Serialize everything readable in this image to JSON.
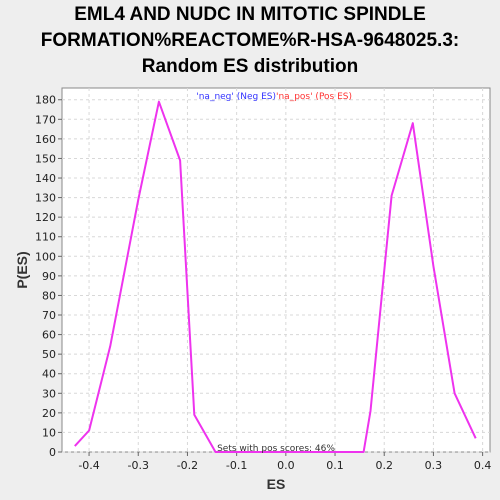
{
  "chart_data": {
    "type": "line",
    "title_lines": [
      "EML4 AND NUDC IN MITOTIC SPINDLE",
      "FORMATION%REACTOME%R-HSA-9648025.3:",
      "Random ES distribution"
    ],
    "xlabel": "ES",
    "ylabel": "P(ES)",
    "xlim": [
      -0.455,
      0.415
    ],
    "ylim": [
      0,
      186
    ],
    "x_ticks": [
      -0.4,
      -0.3,
      -0.2,
      -0.1,
      0.0,
      0.1,
      0.2,
      0.3,
      0.4
    ],
    "x_tick_labels": [
      "-0.4",
      "-0.3",
      "-0.2",
      "-0.1",
      "0.0",
      "0.1",
      "0.2",
      "0.3",
      "0.4"
    ],
    "y_ticks": [
      0,
      10,
      20,
      30,
      40,
      50,
      60,
      70,
      80,
      90,
      100,
      110,
      120,
      130,
      140,
      150,
      160,
      170,
      180
    ],
    "y_tick_labels": [
      "0",
      "10",
      "20",
      "30",
      "40",
      "50",
      "60",
      "70",
      "80",
      "90",
      "100",
      "110",
      "120",
      "130",
      "140",
      "150",
      "160",
      "170",
      "180"
    ],
    "grid": true,
    "legend": {
      "position": "top-center",
      "entries": [
        {
          "label": "'na_neg' (Neg ES)",
          "color": "#3333ff"
        },
        {
          "label": "'na_pos' (Pos ES)",
          "color": "#ff3333"
        }
      ]
    },
    "annotation": "Sets with pos scores: 46%",
    "series": [
      {
        "color": "#ee33ee",
        "points": [
          [
            -0.429,
            3
          ],
          [
            -0.4,
            11
          ],
          [
            -0.357,
            54
          ],
          [
            -0.3,
            129
          ],
          [
            -0.258,
            179
          ],
          [
            -0.215,
            149
          ],
          [
            -0.186,
            19
          ],
          [
            -0.143,
            0
          ],
          [
            -0.1,
            0
          ],
          [
            -0.057,
            0
          ],
          [
            -0.014,
            0
          ],
          [
            0.029,
            0
          ],
          [
            0.072,
            0
          ],
          [
            0.115,
            0
          ],
          [
            0.158,
            0
          ],
          [
            0.172,
            21
          ],
          [
            0.215,
            131
          ],
          [
            0.258,
            168
          ],
          [
            0.3,
            95
          ],
          [
            0.343,
            30
          ],
          [
            0.386,
            7
          ]
        ]
      }
    ]
  }
}
